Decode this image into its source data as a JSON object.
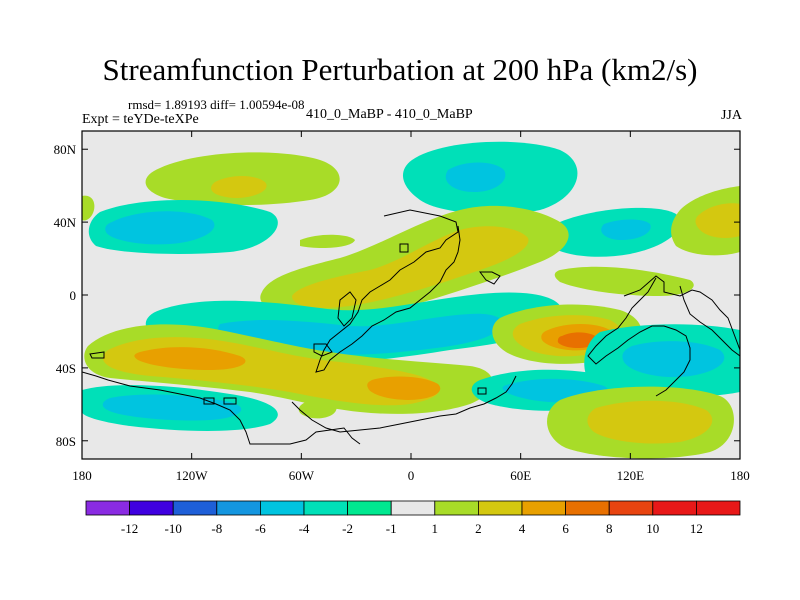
{
  "header": {
    "title": "Streamfunction Perturbation at 200 hPa (km2/s)",
    "stats": "rmsd= 1.89193 diff= 1.00594e-08",
    "experiment": "Expt = teYDe-teXPe",
    "center_label": "410_0_MaBP - 410_0_MaBP",
    "season": "JJA"
  },
  "chart_data": {
    "type": "heatmap",
    "title": "Streamfunction Perturbation at 200 hPa (km2/s)",
    "xlabel": "",
    "ylabel": "",
    "xlim": [
      -180,
      180
    ],
    "ylim": [
      -90,
      90
    ],
    "x_ticks": [
      {
        "value": -180,
        "label": "180"
      },
      {
        "value": -120,
        "label": "120W"
      },
      {
        "value": -60,
        "label": "60W"
      },
      {
        "value": 0,
        "label": "0"
      },
      {
        "value": 60,
        "label": "60E"
      },
      {
        "value": 120,
        "label": "120E"
      },
      {
        "value": 180,
        "label": "180"
      }
    ],
    "y_ticks": [
      {
        "value": 80,
        "label": "80N"
      },
      {
        "value": 40,
        "label": "40N"
      },
      {
        "value": 0,
        "label": "0"
      },
      {
        "value": -40,
        "label": "40S"
      },
      {
        "value": -80,
        "label": "80S"
      }
    ],
    "colorbar": {
      "levels": [
        "-12",
        "-10",
        "-8",
        "-6",
        "-4",
        "-2",
        "-1",
        "1",
        "2",
        "4",
        "6",
        "8",
        "10",
        "12"
      ],
      "colors": [
        "#8a2be2",
        "#3f00e0",
        "#1e5fd8",
        "#1496e0",
        "#00c4e0",
        "#00e0b8",
        "#00e890",
        "#e8e8e8",
        "#a8dc28",
        "#d4c810",
        "#e8a000",
        "#e87000",
        "#e84410",
        "#e81818"
      ]
    },
    "features": [
      {
        "name": "nh-jet-band-west",
        "lon": -120,
        "lat": 62,
        "value": 3
      },
      {
        "name": "nh-midlat-low-west",
        "lon": -145,
        "lat": 38,
        "value": -3
      },
      {
        "name": "arctic-low-central",
        "lon": 30,
        "lat": 64,
        "value": -3
      },
      {
        "name": "nh-low-east",
        "lon": 105,
        "lat": 38,
        "value": -2
      },
      {
        "name": "nh-high-far-east",
        "lon": 165,
        "lat": 38,
        "value": 3
      },
      {
        "name": "tropical-high-atlantic",
        "lon": -5,
        "lat": 5,
        "value": 4
      },
      {
        "name": "tropical-low-band",
        "lon": -45,
        "lat": -28,
        "value": -4
      },
      {
        "name": "sh-subtropical-high-pacific",
        "lon": -115,
        "lat": -38,
        "value": 7
      },
      {
        "name": "sh-high-south-atlantic",
        "lon": 10,
        "lat": -52,
        "value": 6
      },
      {
        "name": "sh-high-indian-ocean",
        "lon": 100,
        "lat": -28,
        "value": 9
      },
      {
        "name": "sh-low-east-indian",
        "lon": 140,
        "lat": -42,
        "value": -3
      },
      {
        "name": "sh-high-southern-ocean",
        "lon": 120,
        "lat": -70,
        "value": 4
      },
      {
        "name": "sh-low-southern-pacific",
        "lon": -140,
        "lat": -62,
        "value": -4
      }
    ]
  }
}
